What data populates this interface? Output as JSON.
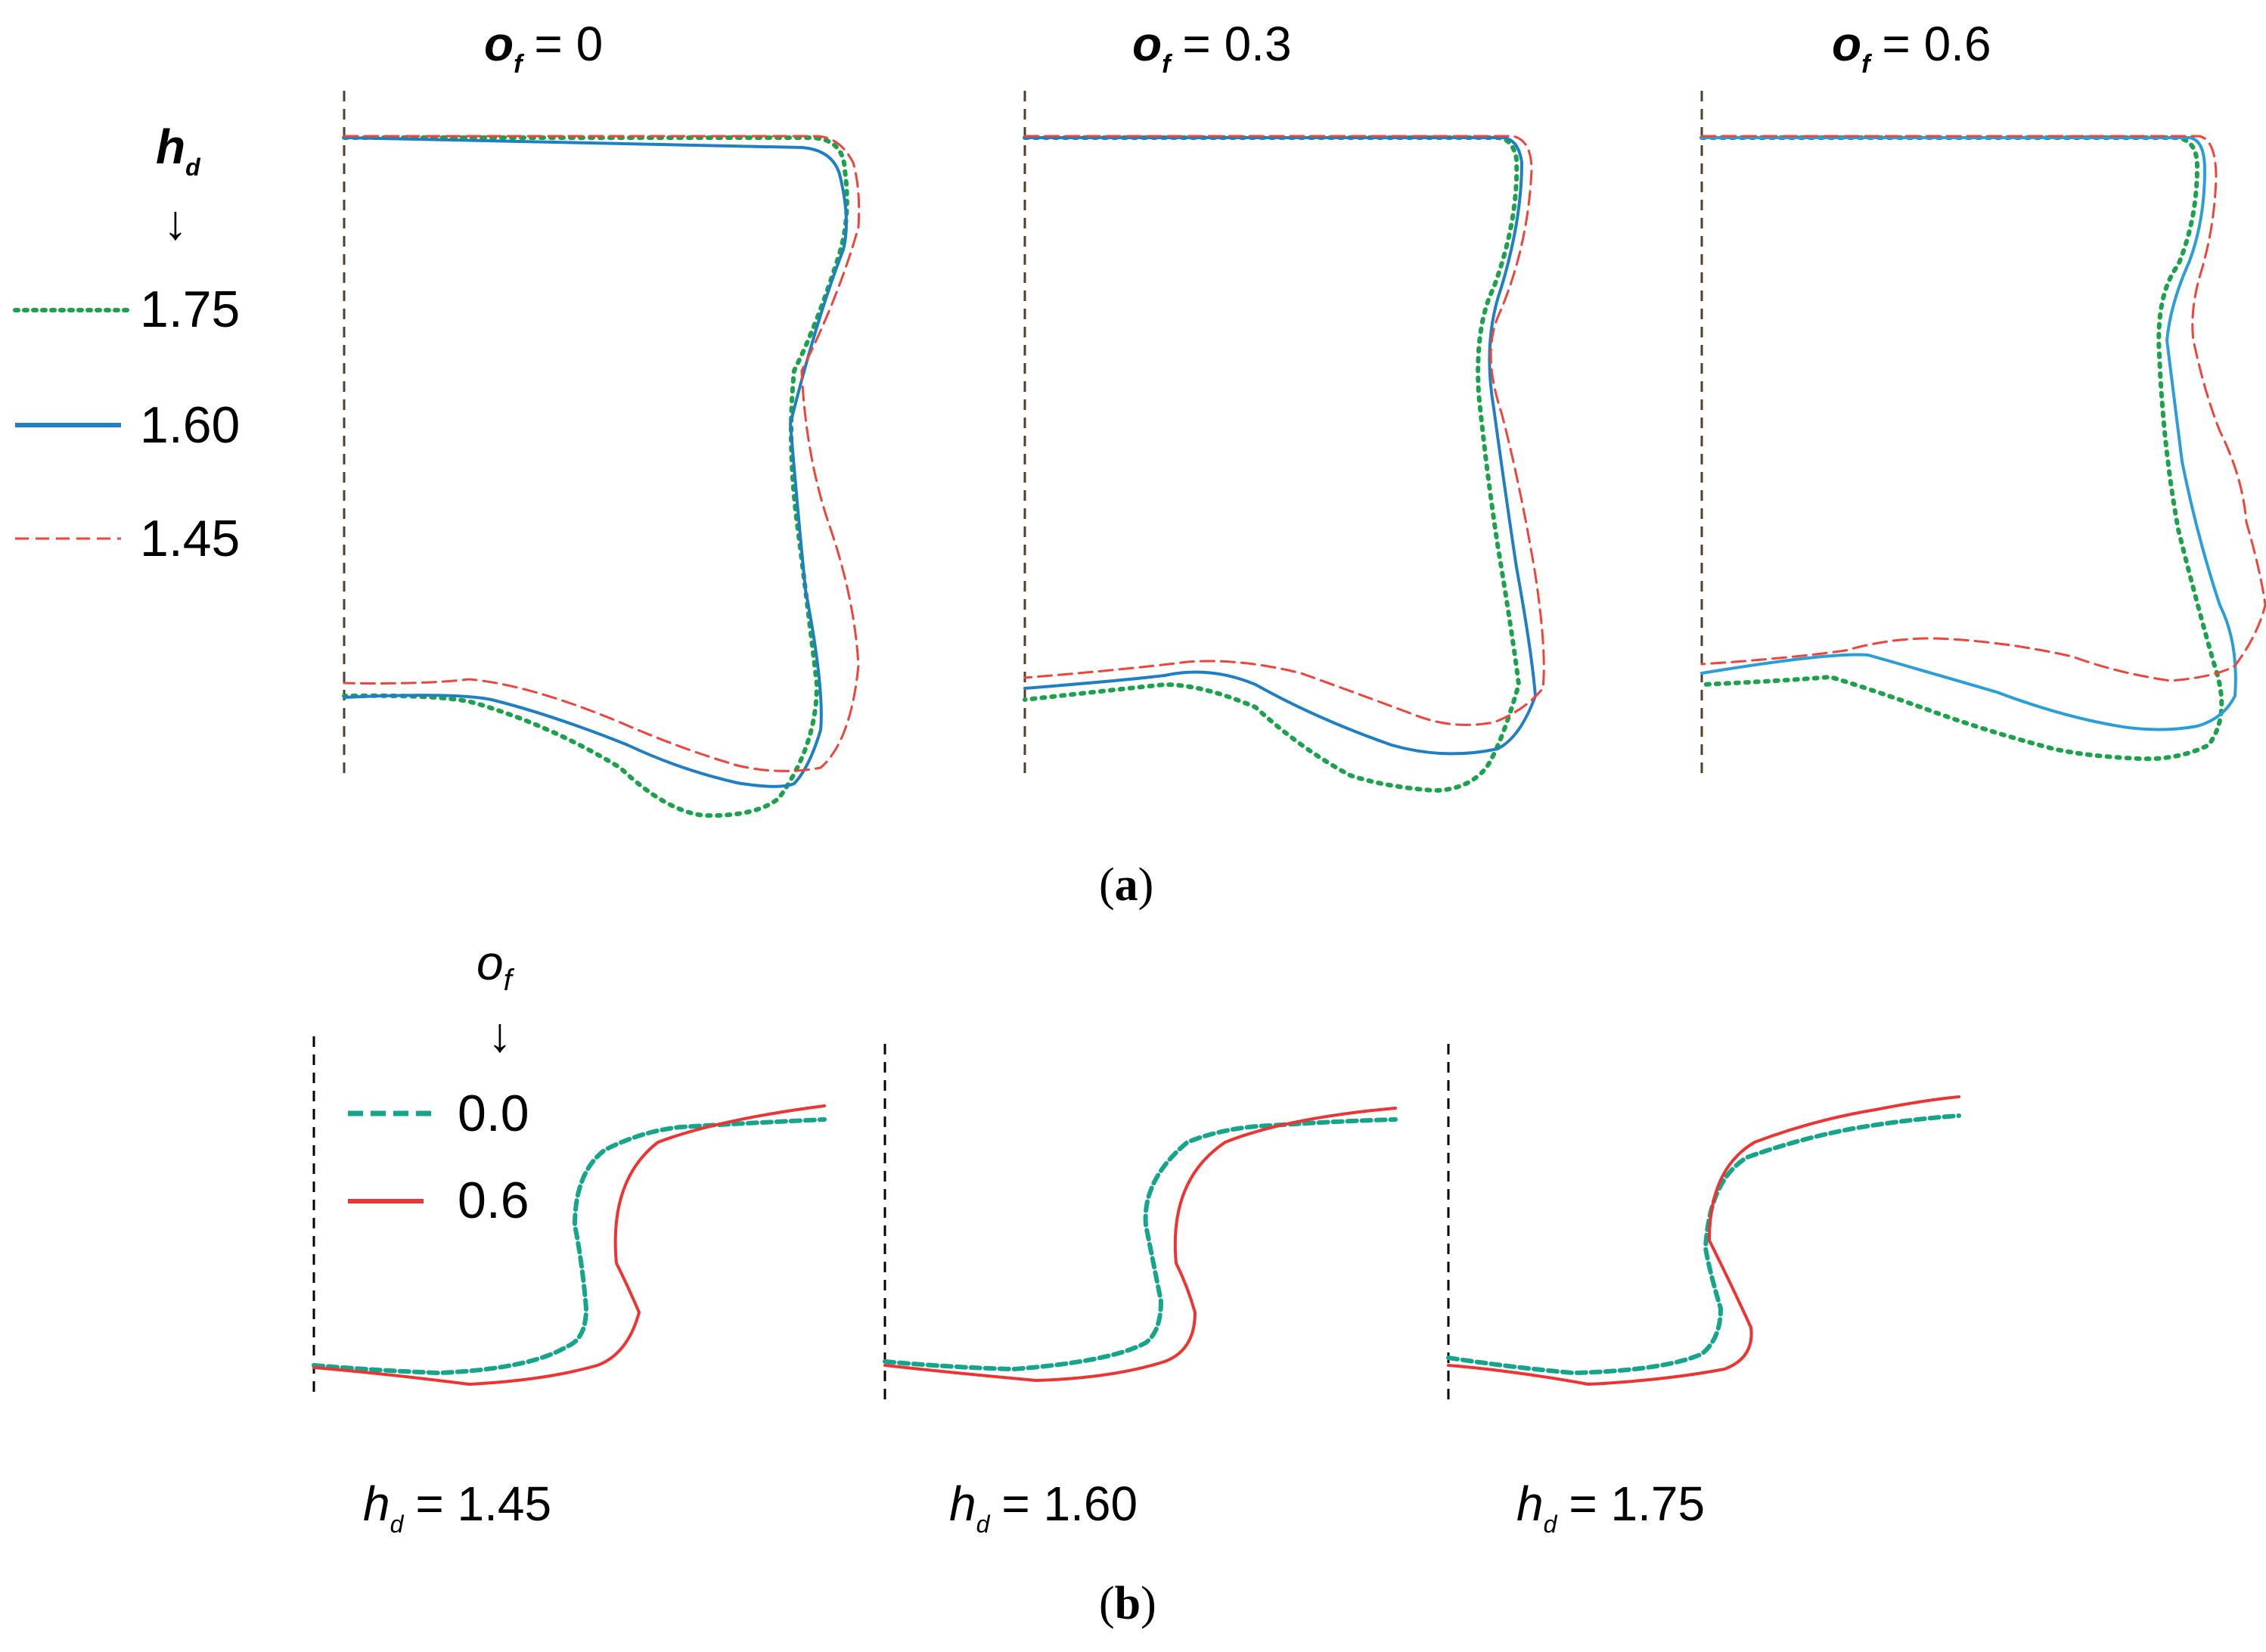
{
  "figure_a": {
    "caption": {
      "open": "(",
      "letter": "a",
      "close": ")"
    },
    "legend": {
      "title_var": "h",
      "title_sub": "d",
      "arrow": "↓",
      "entries": [
        {
          "key": "hd_175",
          "label": "1.75",
          "color": "#1aa34a",
          "style": "dotted"
        },
        {
          "key": "hd_160",
          "label": "1.60",
          "color": "#1f7fc4",
          "style": "solid"
        },
        {
          "key": "hd_145",
          "label": "1.45",
          "color": "#f0433a",
          "style": "dashed"
        }
      ]
    },
    "panels": [
      {
        "title_var": "o",
        "title_sub": "f",
        "title_value": "= 0"
      },
      {
        "title_var": "o",
        "title_sub": "f",
        "title_value": "= 0.3"
      },
      {
        "title_var": "o",
        "title_sub": "f",
        "title_value": "= 0.6"
      }
    ]
  },
  "figure_b": {
    "caption": {
      "open": "(",
      "letter": "b",
      "close": ")"
    },
    "legend": {
      "title_var": "o",
      "title_sub": "f",
      "arrow": "↓",
      "entries": [
        {
          "key": "of_00",
          "label": "0.0",
          "color": "#14a58a",
          "style": "dashed"
        },
        {
          "key": "of_06",
          "label": "0.6",
          "color": "#ee3333",
          "style": "solid"
        }
      ]
    },
    "panels": [
      {
        "label_var": "h",
        "label_sub": "d",
        "label_value": "= 1.45"
      },
      {
        "label_var": "h",
        "label_sub": "d",
        "label_value": "= 1.60"
      },
      {
        "label_var": "h",
        "label_sub": "d",
        "label_value": "= 1.75"
      }
    ]
  }
}
